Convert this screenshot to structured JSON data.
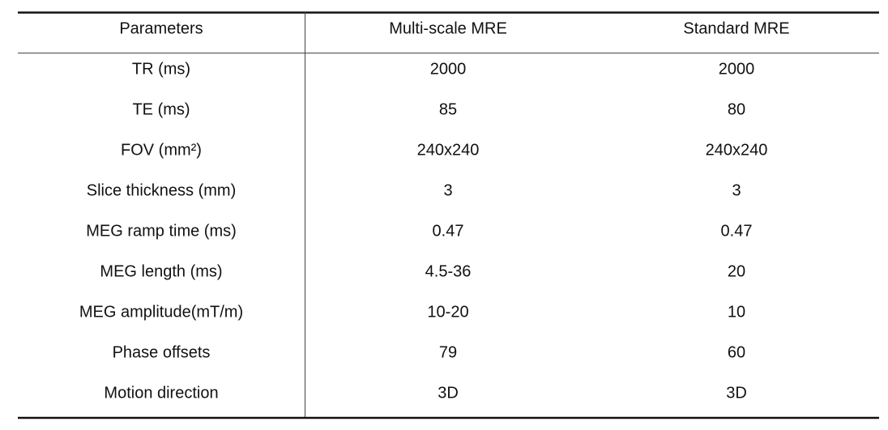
{
  "table": {
    "header": [
      "Parameters",
      "Multi-scale MRE",
      "Standard MRE"
    ],
    "rows": [
      [
        "TR (ms)",
        "2000",
        "2000"
      ],
      [
        "TE (ms)",
        "85",
        "80"
      ],
      [
        "FOV (mm²)",
        "240x240",
        "240x240"
      ],
      [
        "Slice thickness (mm)",
        "3",
        "3"
      ],
      [
        "MEG ramp time (ms)",
        "0.47",
        "0.47"
      ],
      [
        "MEG length (ms)",
        "4.5-36",
        "20"
      ],
      [
        "MEG amplitude(mT/m)",
        "10-20",
        "10"
      ],
      [
        "Phase offsets",
        "79",
        "60"
      ],
      [
        "Motion direction",
        "3D",
        "3D"
      ]
    ]
  }
}
